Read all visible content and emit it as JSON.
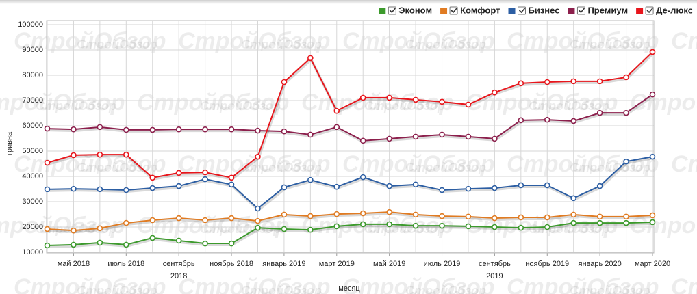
{
  "chart_data": {
    "type": "line",
    "watermark": "СтройОбзор",
    "xlabel": "месяц",
    "ylabel": "гривна",
    "categories": [
      null,
      "май 2018",
      null,
      "июль 2018",
      null,
      "сентябрь",
      null,
      "ноябрь 2018",
      null,
      "январь 2019",
      null,
      "март 2019",
      null,
      "май 2019",
      null,
      "июль 2019",
      null,
      "сентябрь",
      null,
      "ноябрь 2019",
      null,
      "январь 2020",
      null,
      "март 2020"
    ],
    "category_years": [
      null,
      null,
      null,
      null,
      null,
      "2018",
      null,
      null,
      null,
      null,
      null,
      null,
      null,
      null,
      null,
      null,
      null,
      "2019",
      null,
      null,
      null,
      null,
      null,
      null
    ],
    "ylim": [
      10000,
      100000
    ],
    "yticks": [
      10000,
      20000,
      30000,
      40000,
      50000,
      60000,
      70000,
      80000,
      90000,
      100000
    ],
    "grid": true,
    "legend": "top-right",
    "series": [
      {
        "name": "Эконом",
        "color": "#3c9a2c",
        "values": [
          12700,
          13000,
          13800,
          13000,
          15700,
          14600,
          13500,
          13500,
          19700,
          19200,
          18900,
          20300,
          21100,
          21100,
          20500,
          20500,
          20300,
          20000,
          19700,
          20000,
          21600,
          21600,
          21600,
          21900
        ]
      },
      {
        "name": "Комфорт",
        "color": "#e07b22",
        "values": [
          19200,
          18600,
          19500,
          21600,
          22700,
          23500,
          22700,
          23500,
          22400,
          24900,
          24300,
          25100,
          25400,
          25900,
          24900,
          24300,
          24100,
          23500,
          23800,
          23800,
          24900,
          24100,
          24100,
          24600
        ]
      },
      {
        "name": "Бизнес",
        "color": "#2c5ea3",
        "values": [
          34900,
          35100,
          34900,
          34600,
          35400,
          36200,
          38900,
          36800,
          27300,
          35700,
          38600,
          35900,
          39700,
          36200,
          36800,
          34600,
          35100,
          35400,
          36500,
          36500,
          31400,
          36200,
          45900,
          47800
        ]
      },
      {
        "name": "Премиум",
        "color": "#8c1f4c",
        "values": [
          58900,
          58600,
          59500,
          58400,
          58400,
          58600,
          58600,
          58600,
          58100,
          57800,
          56500,
          59500,
          54100,
          54900,
          55700,
          56500,
          55700,
          54900,
          62200,
          62400,
          61900,
          65100,
          65100,
          72400
        ]
      },
      {
        "name": "Де-люкс",
        "color": "#e8151b",
        "values": [
          45400,
          48400,
          48600,
          48600,
          39500,
          41400,
          41600,
          39500,
          47800,
          77300,
          86800,
          65900,
          71100,
          71100,
          70300,
          69500,
          68400,
          73200,
          76800,
          77300,
          77600,
          77600,
          79200,
          89200
        ]
      }
    ]
  }
}
